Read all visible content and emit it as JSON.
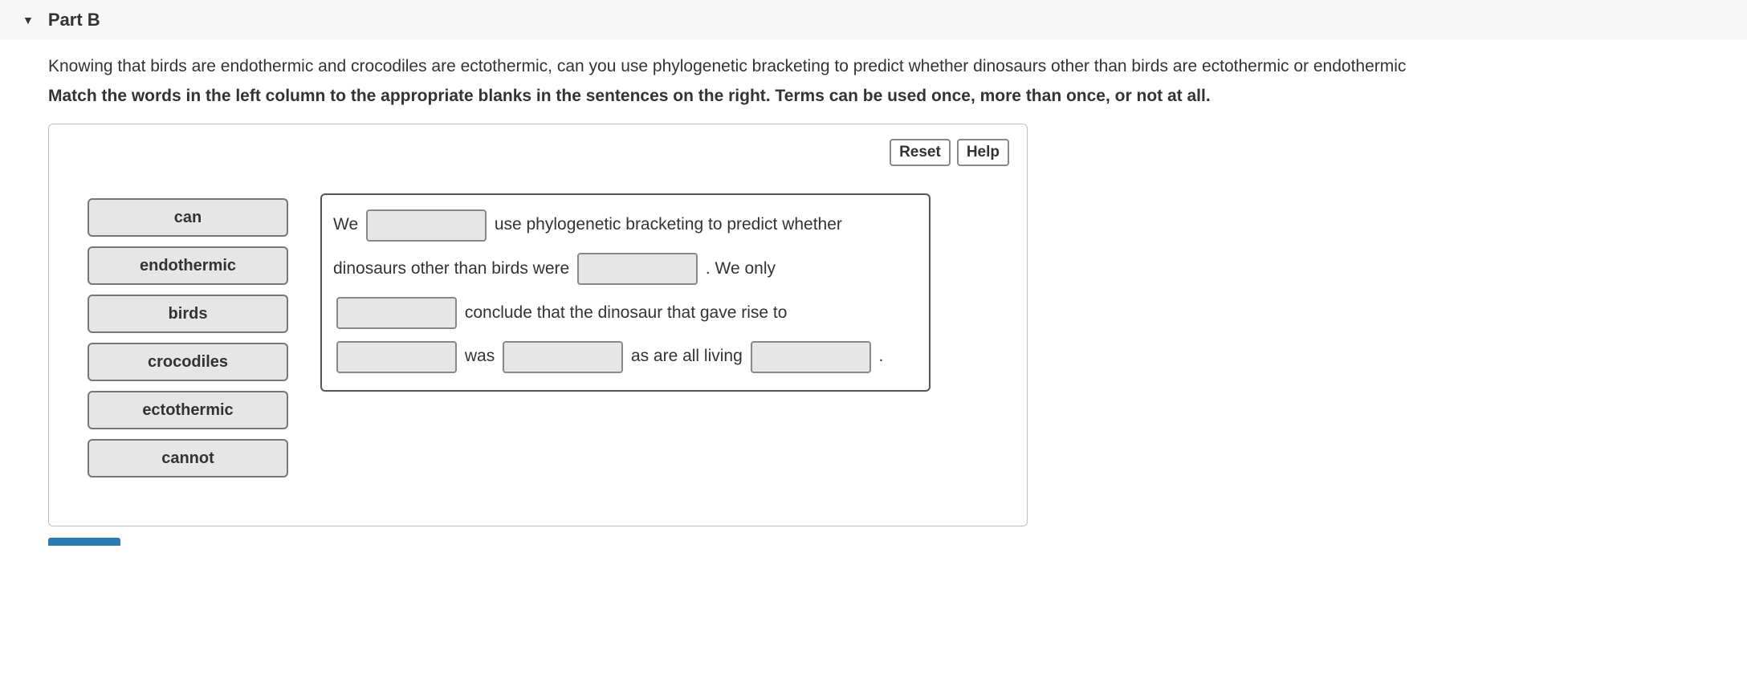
{
  "header": {
    "part_label": "Part B"
  },
  "question": "Knowing that birds are endothermic and crocodiles are ectothermic, can you use phylogenetic bracketing to predict whether dinosaurs other than birds are ectothermic or endothermic",
  "instruction": "Match the words in the left column to the appropriate blanks in the sentences on the right. Terms can be used once, more than once, or not at all.",
  "buttons": {
    "reset": "Reset",
    "help": "Help"
  },
  "terms": [
    "can",
    "endothermic",
    "birds",
    "crocodiles",
    "ectothermic",
    "cannot"
  ],
  "sentence": {
    "seg1": "We",
    "seg2": "use phylogenetic bracketing to predict whether",
    "seg3": "dinosaurs other than birds were",
    "seg4": ". We only",
    "seg5": "conclude that the dinosaur that gave rise to",
    "seg6": "was",
    "seg7": "as are all living",
    "seg8": "."
  },
  "colors": {
    "header_bg": "#f7f7f7",
    "term_bg": "#e6e6e6",
    "border": "#777777",
    "submit": "#2b7bb9"
  }
}
